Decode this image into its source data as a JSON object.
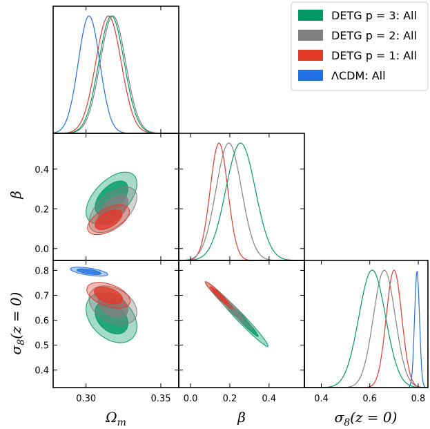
{
  "colors": {
    "p3": "#009966",
    "p2": "#808080",
    "p1": "#e03a2a",
    "lcdm": "#1f6fe0"
  },
  "axis_labels": {
    "omega_m": "Ωm",
    "beta": "β",
    "sigma8": "σ8(z = 0)"
  },
  "chart_data": {
    "type": "triangle-corner-plot",
    "parameters": [
      "Omega_m",
      "beta",
      "sigma8(z=0)"
    ],
    "ranges": {
      "Omega_m": [
        0.278,
        0.362
      ],
      "beta": [
        -0.06,
        0.58
      ],
      "sigma8": [
        0.33,
        0.84
      ]
    },
    "ticks": {
      "Omega_m": [
        "0.30",
        "0.35"
      ],
      "beta_y": [
        "0.0",
        "0.2",
        "0.4"
      ],
      "beta_x": [
        "0.0",
        "0.2",
        "0.4"
      ],
      "sigma8_y": [
        "0.4",
        "0.5",
        "0.6",
        "0.7",
        "0.8"
      ],
      "sigma8_x": [
        "0.4",
        "0.6",
        "0.8"
      ]
    },
    "legend": {
      "placement": "top-right",
      "entries": [
        "DETG p = 3: All",
        "DETG p = 2: All",
        "DETG p = 1: All",
        "ΛCDM: All"
      ]
    },
    "series": [
      {
        "name": "DETG p = 3: All",
        "color_key": "p3",
        "mean": {
          "Omega_m": 0.317,
          "beta": 0.255,
          "sigma8": 0.61
        },
        "sd": {
          "Omega_m": 0.0085,
          "beta": 0.075,
          "sigma8": 0.055
        },
        "has_beta": true
      },
      {
        "name": "DETG p = 2: All",
        "color_key": "p2",
        "mean": {
          "Omega_m": 0.318,
          "beta": 0.195,
          "sigma8": 0.66
        },
        "sd": {
          "Omega_m": 0.0085,
          "beta": 0.065,
          "sigma8": 0.045
        },
        "has_beta": true
      },
      {
        "name": "DETG p = 1: All",
        "color_key": "p1",
        "mean": {
          "Omega_m": 0.315,
          "beta": 0.145,
          "sigma8": 0.7
        },
        "sd": {
          "Omega_m": 0.0085,
          "beta": 0.045,
          "sigma8": 0.032
        },
        "has_beta": true
      },
      {
        "name": "ΛCDM: All",
        "color_key": "lcdm",
        "mean": {
          "Omega_m": 0.302,
          "sigma8": 0.795
        },
        "sd": {
          "Omega_m": 0.0072,
          "sigma8": 0.01
        },
        "has_beta": false
      }
    ],
    "contours_2d": {
      "omega_m_vs_beta": [
        {
          "series": "DETG p = 3: All",
          "corr": 0.55,
          "sx": [
            0.011,
            0.017
          ],
          "sy": [
            0.085,
            0.13
          ]
        },
        {
          "series": "DETG p = 2: All",
          "corr": 0.55,
          "sx": [
            0.01,
            0.016
          ],
          "sy": [
            0.075,
            0.115
          ]
        },
        {
          "series": "DETG p = 1: All",
          "corr": 0.55,
          "sx": [
            0.009,
            0.014
          ],
          "sy": [
            0.05,
            0.075
          ]
        }
      ],
      "omega_m_vs_sigma8": [
        {
          "series": "DETG p = 3: All",
          "corr": -0.35,
          "sx": [
            0.011,
            0.017
          ],
          "sy": [
            0.065,
            0.1
          ]
        },
        {
          "series": "DETG p = 2: All",
          "corr": -0.35,
          "sx": [
            0.01,
            0.016
          ],
          "sy": [
            0.05,
            0.078
          ]
        },
        {
          "series": "DETG p = 1: All",
          "corr": -0.45,
          "sx": [
            0.0095,
            0.0145
          ],
          "sy": [
            0.034,
            0.052
          ]
        },
        {
          "series": "ΛCDM: All",
          "corr": -0.6,
          "sx": [
            0.008,
            0.0125
          ],
          "sy": [
            0.0115,
            0.018
          ]
        }
      ],
      "beta_vs_sigma8": [
        {
          "series": "DETG p = 3: All",
          "corr": -0.98,
          "sx": [
            0.09,
            0.14
          ],
          "sy": [
            0.075,
            0.115
          ]
        },
        {
          "series": "DETG p = 2: All",
          "corr": -0.98,
          "sx": [
            0.075,
            0.12
          ],
          "sy": [
            0.06,
            0.095
          ]
        },
        {
          "series": "DETG p = 1: All",
          "corr": -0.97,
          "sx": [
            0.045,
            0.07
          ],
          "sy": [
            0.035,
            0.055
          ]
        }
      ]
    }
  }
}
